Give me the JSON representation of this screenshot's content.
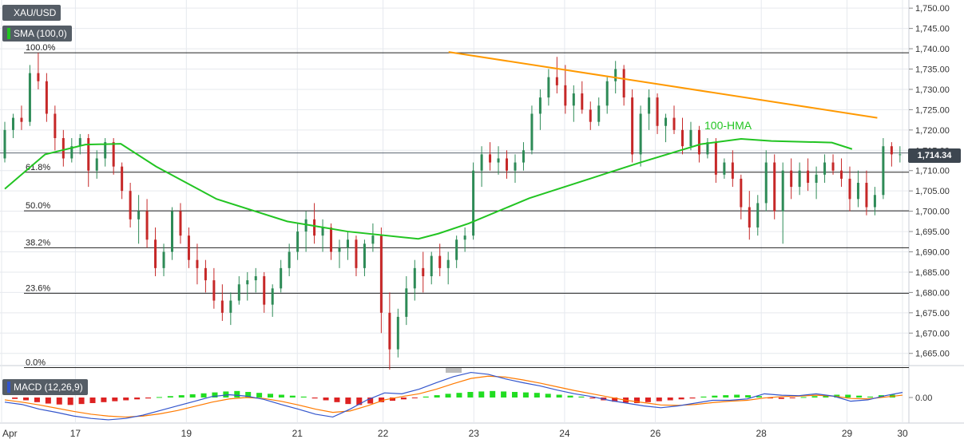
{
  "chart_data": [
    {
      "type": "candlestick",
      "symbol": "XAU/USD",
      "indicator_label": "SMA (100,0)",
      "hma_label": "100-HMA",
      "last_price": "1,714.34",
      "ylim": [
        1662,
        1752
      ],
      "y_ticks": [
        "1,750.00",
        "1,745.00",
        "1,740.00",
        "1,735.00",
        "1,730.00",
        "1,725.00",
        "1,720.00",
        "1,715.00",
        "1,710.00",
        "1,705.00",
        "1,700.00",
        "1,695.00",
        "1,690.00",
        "1,685.00",
        "1,680.00",
        "1,675.00",
        "1,670.00",
        "1,665.00"
      ],
      "y_tick_values": [
        1750,
        1745,
        1740,
        1735,
        1730,
        1725,
        1720,
        1715,
        1710,
        1705,
        1700,
        1695,
        1690,
        1685,
        1680,
        1675,
        1670,
        1665
      ],
      "x_ticks": [
        "Apr",
        "17",
        "19",
        "21",
        "22",
        "23",
        "24",
        "26",
        "28",
        "29",
        "30"
      ],
      "fibonacci": [
        {
          "label": "100.0%",
          "value": 1739.0
        },
        {
          "label": "61.8%",
          "value": 1709.6
        },
        {
          "label": "50.0%",
          "value": 1700.1
        },
        {
          "label": "38.2%",
          "value": 1691.0
        },
        {
          "label": "23.6%",
          "value": 1679.8
        },
        {
          "label": "0.0%",
          "value": 1661.5
        }
      ],
      "resistance_line": {
        "color": "#ff9900",
        "from": {
          "x": 88,
          "y": 1739.2
        },
        "to": {
          "x": 173,
          "y": 1723.0
        }
      },
      "hma": [
        [
          0,
          1705.5
        ],
        [
          8,
          1714
        ],
        [
          16,
          1716.4
        ],
        [
          23,
          1716.6
        ],
        [
          30,
          1711
        ],
        [
          42,
          1703
        ],
        [
          56,
          1697.5
        ],
        [
          68,
          1695.0
        ],
        [
          82,
          1693.2
        ],
        [
          86,
          1694.5
        ],
        [
          92,
          1697
        ],
        [
          104,
          1703.2
        ],
        [
          116,
          1708
        ],
        [
          126,
          1712
        ],
        [
          138,
          1716.5
        ],
        [
          146,
          1717.8
        ],
        [
          152,
          1717.3
        ],
        [
          164,
          1716.9
        ],
        [
          168,
          1715.3
        ]
      ],
      "hma_color": "#22c422",
      "bull_color": "#2e8b57",
      "bear_color": "#c62828",
      "candles": [
        [
          1713,
          1722,
          1712,
          1720
        ],
        [
          1720,
          1724,
          1718,
          1723
        ],
        [
          1723,
          1726,
          1720,
          1722
        ],
        [
          1722,
          1736,
          1721,
          1734
        ],
        [
          1734,
          1739,
          1730,
          1732
        ],
        [
          1732,
          1734,
          1722,
          1724
        ],
        [
          1724,
          1726,
          1715,
          1718
        ],
        [
          1718,
          1720,
          1711,
          1713
        ],
        [
          1713,
          1718,
          1712,
          1716
        ],
        [
          1716,
          1719,
          1714,
          1718
        ],
        [
          1718,
          1719,
          1706,
          1710
        ],
        [
          1710,
          1715,
          1708,
          1713
        ],
        [
          1713,
          1718,
          1711,
          1717
        ],
        [
          1717,
          1718,
          1709,
          1711
        ],
        [
          1711,
          1712,
          1703,
          1705
        ],
        [
          1705,
          1707,
          1696,
          1698
        ],
        [
          1698,
          1704,
          1692,
          1700
        ],
        [
          1700,
          1703,
          1691,
          1693
        ],
        [
          1693,
          1696,
          1684,
          1686
        ],
        [
          1686,
          1692,
          1684,
          1690
        ],
        [
          1690,
          1701,
          1688,
          1700
        ],
        [
          1700,
          1702,
          1692,
          1694
        ],
        [
          1694,
          1696,
          1686,
          1688
        ],
        [
          1688,
          1692,
          1682,
          1686
        ],
        [
          1686,
          1688,
          1680,
          1683
        ],
        [
          1683,
          1686,
          1676,
          1678
        ],
        [
          1678,
          1682,
          1673,
          1675
        ],
        [
          1675,
          1680,
          1672,
          1678
        ],
        [
          1678,
          1684,
          1677,
          1682
        ],
        [
          1682,
          1685,
          1678,
          1683
        ],
        [
          1683,
          1686,
          1680,
          1684
        ],
        [
          1684,
          1685,
          1675,
          1677
        ],
        [
          1677,
          1682,
          1674,
          1681
        ],
        [
          1681,
          1688,
          1680,
          1686
        ],
        [
          1686,
          1692,
          1684,
          1690
        ],
        [
          1690,
          1697,
          1688,
          1695
        ],
        [
          1695,
          1700,
          1690,
          1698
        ],
        [
          1698,
          1702,
          1692,
          1694
        ],
        [
          1694,
          1698,
          1690,
          1696
        ],
        [
          1696,
          1697,
          1688,
          1690
        ],
        [
          1690,
          1693,
          1686,
          1691
        ],
        [
          1691,
          1695,
          1688,
          1693
        ],
        [
          1693,
          1694,
          1684,
          1686
        ],
        [
          1686,
          1693,
          1684,
          1692
        ],
        [
          1692,
          1697,
          1690,
          1694
        ],
        [
          1694,
          1696,
          1670,
          1675
        ],
        [
          1675,
          1680,
          1661,
          1666
        ],
        [
          1666,
          1676,
          1664,
          1674
        ],
        [
          1674,
          1684,
          1672,
          1681
        ],
        [
          1681,
          1688,
          1678,
          1686
        ],
        [
          1686,
          1690,
          1680,
          1684
        ],
        [
          1684,
          1690,
          1682,
          1689
        ],
        [
          1689,
          1692,
          1684,
          1686
        ],
        [
          1686,
          1690,
          1682,
          1688
        ],
        [
          1688,
          1694,
          1686,
          1693
        ],
        [
          1693,
          1696,
          1690,
          1694
        ],
        [
          1694,
          1712,
          1693,
          1710
        ],
        [
          1710,
          1716,
          1706,
          1714
        ],
        [
          1714,
          1717,
          1710,
          1712
        ],
        [
          1712,
          1716,
          1709,
          1713
        ],
        [
          1713,
          1715,
          1708,
          1710
        ],
        [
          1710,
          1714,
          1707,
          1712
        ],
        [
          1712,
          1717,
          1710,
          1715
        ],
        [
          1715,
          1726,
          1714,
          1724
        ],
        [
          1724,
          1730,
          1720,
          1728
        ],
        [
          1728,
          1735,
          1726,
          1733
        ],
        [
          1733,
          1738,
          1729,
          1731
        ],
        [
          1731,
          1736,
          1724,
          1726
        ],
        [
          1726,
          1731,
          1722,
          1729
        ],
        [
          1729,
          1732,
          1724,
          1725
        ],
        [
          1725,
          1727,
          1720,
          1722
        ],
        [
          1722,
          1728,
          1721,
          1726
        ],
        [
          1726,
          1733,
          1724,
          1732
        ],
        [
          1732,
          1737,
          1729,
          1735
        ],
        [
          1735,
          1736,
          1726,
          1728
        ],
        [
          1728,
          1730,
          1712,
          1714
        ],
        [
          1714,
          1726,
          1711,
          1724
        ],
        [
          1724,
          1730,
          1720,
          1728
        ],
        [
          1728,
          1729,
          1719,
          1721
        ],
        [
          1721,
          1724,
          1717,
          1723
        ],
        [
          1723,
          1726,
          1719,
          1720
        ],
        [
          1720,
          1723,
          1714,
          1716
        ],
        [
          1716,
          1722,
          1715,
          1720
        ],
        [
          1720,
          1721,
          1712,
          1714
        ],
        [
          1714,
          1718,
          1713,
          1717
        ],
        [
          1717,
          1718,
          1707,
          1709
        ],
        [
          1709,
          1713,
          1708,
          1712
        ],
        [
          1712,
          1715,
          1706,
          1708
        ],
        [
          1708,
          1709,
          1698,
          1701
        ],
        [
          1701,
          1705,
          1693,
          1696
        ],
        [
          1696,
          1704,
          1694,
          1702
        ],
        [
          1702,
          1715,
          1700,
          1712
        ],
        [
          1712,
          1714,
          1698,
          1700
        ],
        [
          1700,
          1712,
          1692,
          1710
        ],
        [
          1710,
          1713,
          1703,
          1706
        ],
        [
          1706,
          1712,
          1704,
          1710
        ],
        [
          1710,
          1713,
          1705,
          1707
        ],
        [
          1707,
          1711,
          1703,
          1709
        ],
        [
          1709,
          1714,
          1707,
          1712
        ],
        [
          1712,
          1714,
          1709,
          1710
        ],
        [
          1710,
          1713,
          1706,
          1708
        ],
        [
          1708,
          1711,
          1700,
          1703
        ],
        [
          1703,
          1710,
          1701,
          1707
        ],
        [
          1707,
          1710,
          1699,
          1701
        ],
        [
          1701,
          1706,
          1699,
          1704
        ],
        [
          1704,
          1718,
          1703,
          1716
        ],
        [
          1716,
          1717,
          1711,
          1714
        ],
        [
          1714,
          1716,
          1712,
          1714
        ]
      ],
      "macd": {
        "label": "MACD (12,26,9)",
        "zero_label": "0.00",
        "ylim": [
          -5.5,
          5.5
        ],
        "histogram": [
          -0.3,
          -0.6,
          -1,
          -1.3,
          -1.5,
          -1.6,
          -1.4,
          -1.2,
          -1,
          -0.8,
          -0.6,
          -0.4,
          -0.2,
          0.1,
          0.3,
          0.5,
          0.7,
          0.9,
          1.1,
          1.3,
          1.4,
          1.2,
          1,
          0.8,
          0.6,
          0.4,
          0.2,
          -0.2,
          -0.6,
          -1,
          -1.4,
          -1.6,
          -1.3,
          -1,
          -0.7,
          -0.4,
          -0.1,
          0.2,
          0.5,
          0.8,
          1,
          1.2,
          1.3,
          1.4,
          1.3,
          1.2,
          1.1,
          1,
          0.8,
          0.6,
          0.4,
          0.2,
          -0.2,
          -0.6,
          -0.9,
          -1.1,
          -1.2,
          -1,
          -0.8,
          -0.6,
          -0.4,
          -0.2,
          0.2,
          0.4,
          0.5,
          0.6,
          0.5,
          0.3,
          -0.2,
          -0.3,
          -0.1,
          0.1,
          0.3,
          0.5,
          0.6,
          0.6,
          0.4,
          0.2,
          0.5,
          0.6
        ],
        "macd_line": [
          -1,
          -1.5,
          -2.5,
          -3.2,
          -4,
          -4.5,
          -4.8,
          -4.5,
          -3.8,
          -2.8,
          -1.8,
          -0.8,
          0.2,
          0.6,
          0.3,
          -0.4,
          -1.5,
          -2.5,
          -3.6,
          -4.2,
          -2.5,
          -0.5,
          1,
          0.8,
          1.8,
          3.2,
          4.5,
          5.4,
          5,
          4,
          3.2,
          2.5,
          1.6,
          0.8,
          0.2,
          -0.6,
          -1.2,
          -1.8,
          -2.2,
          -1.8,
          -1.2,
          -0.6,
          -0.6,
          -0.3,
          0.8,
          0.5,
          0.4,
          0.8,
          0.3,
          -0.8,
          -0.5,
          0.4,
          1.1
        ],
        "signal_line": [
          -0.5,
          -1,
          -1.6,
          -2.3,
          -3,
          -3.6,
          -4,
          -4.2,
          -4,
          -3.5,
          -2.8,
          -1.9,
          -1,
          -0.3,
          0,
          -0.2,
          -0.8,
          -1.6,
          -2.5,
          -3.2,
          -2.9,
          -1.8,
          -0.5,
          0.2,
          0.8,
          1.8,
          3,
          4.1,
          4.6,
          4.4,
          3.8,
          3.1,
          2.3,
          1.5,
          0.8,
          0.1,
          -0.6,
          -1.1,
          -1.6,
          -1.7,
          -1.5,
          -1.1,
          -0.8,
          -0.6,
          -0.1,
          0.2,
          0.3,
          0.5,
          0.3,
          -0.2,
          -0.3,
          0.1,
          0.5
        ],
        "macd_color": "#3355cc",
        "signal_color": "#ff7a00",
        "pos_color": "#22dd22",
        "neg_color": "#dd2222"
      }
    }
  ]
}
